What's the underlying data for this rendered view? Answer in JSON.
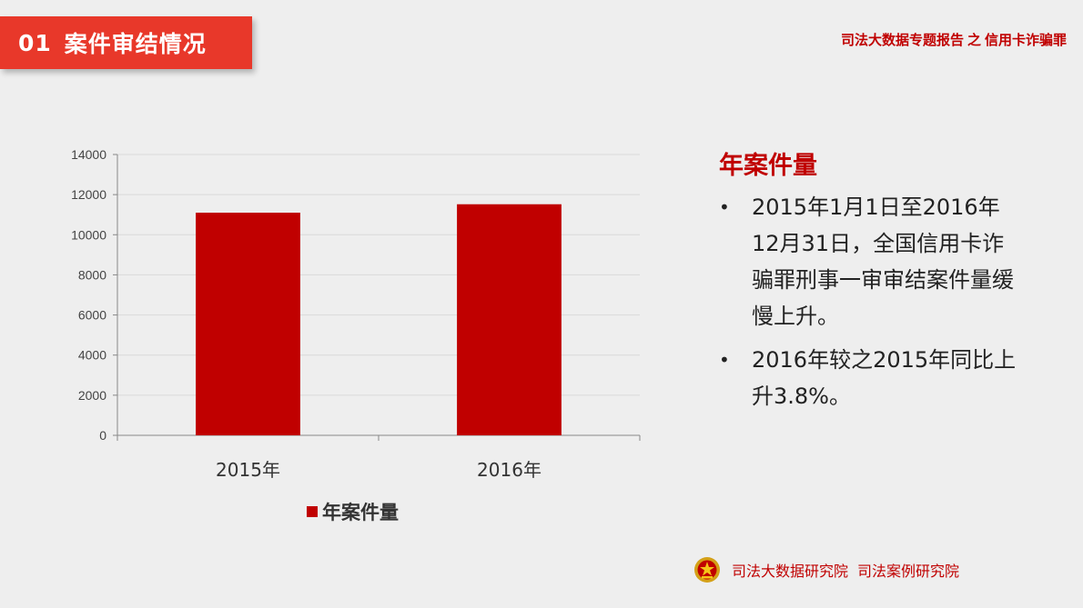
{
  "header": {
    "number": "01",
    "title": "案件审结情况",
    "report_title": "司法大数据专题报告",
    "report_sep": "之",
    "report_topic": "信用卡诈骗罪"
  },
  "chart_data": {
    "type": "bar",
    "title": "",
    "categories": [
      "2015年",
      "2016年"
    ],
    "series": [
      {
        "name": "年案件量",
        "values": [
          11100,
          11520
        ],
        "color": "#c00000"
      }
    ],
    "xlabel": "",
    "ylabel": "",
    "ylim": [
      0,
      14000
    ],
    "yticks": [
      0,
      2000,
      4000,
      6000,
      8000,
      10000,
      12000,
      14000
    ],
    "grid": true,
    "legend": "bottom"
  },
  "panel": {
    "title": "年案件量",
    "bullets": [
      "2015年1月1日至2016年12月31日，全国信用卡诈骗罪刑事一审审结案件量缓慢上升。",
      "2016年较之2015年同比上升3.8%。"
    ],
    "bullet_glyph": "•"
  },
  "footer": {
    "emblem_icon": "court-emblem-icon",
    "org1": "司法大数据研究院",
    "org2": "司法案例研究院"
  }
}
